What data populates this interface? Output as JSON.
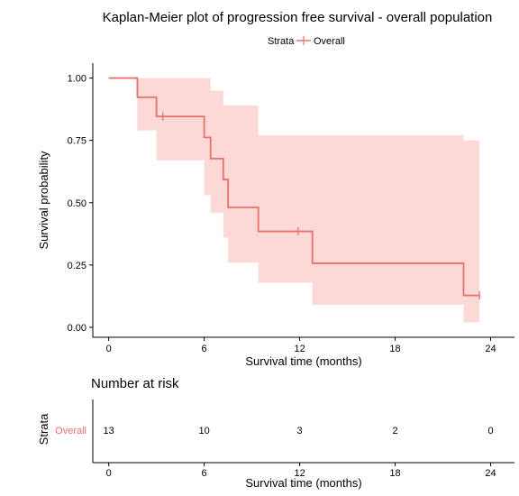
{
  "chart_data": [
    {
      "type": "line",
      "subtype": "kaplan-meier-step",
      "title": "Kaplan-Meier plot of progression free survival - overall population",
      "xlabel": "Survival time (months)",
      "ylabel": "Survival probability",
      "xlim": [
        -1,
        25.5
      ],
      "ylim": [
        -0.04,
        1.06
      ],
      "x_ticks": [
        0,
        6,
        12,
        18,
        24
      ],
      "y_ticks": [
        0.0,
        0.25,
        0.5,
        0.75,
        1.0
      ],
      "y_tick_labels": [
        "0.00",
        "0.25",
        "0.50",
        "0.75",
        "1.00"
      ],
      "legend": {
        "title": "Strata",
        "entries": [
          "Overall"
        ],
        "position": "top"
      },
      "grid": false,
      "series": [
        {
          "name": "Overall",
          "color": "#E8726B",
          "ci_color": "#FCD9D6",
          "x": [
            0,
            1.8,
            1.8,
            3.0,
            3.0,
            6.0,
            6.0,
            6.4,
            6.4,
            7.2,
            7.2,
            7.5,
            7.5,
            9.4,
            9.4,
            12.8,
            12.8,
            22.3,
            22.3,
            23.3
          ],
          "y": [
            1.0,
            1.0,
            0.923,
            0.923,
            0.846,
            0.846,
            0.762,
            0.762,
            0.677,
            0.677,
            0.593,
            0.593,
            0.481,
            0.481,
            0.385,
            0.385,
            0.257,
            0.257,
            0.128,
            0.128
          ],
          "ci_lower": [
            1.0,
            1.0,
            0.79,
            0.79,
            0.67,
            0.67,
            0.53,
            0.53,
            0.46,
            0.46,
            0.36,
            0.36,
            0.26,
            0.26,
            0.18,
            0.18,
            0.09,
            0.09,
            0.02,
            0.02
          ],
          "ci_upper": [
            1.0,
            1.0,
            1.0,
            1.0,
            1.0,
            1.0,
            1.0,
            1.0,
            0.95,
            0.95,
            0.89,
            0.89,
            0.89,
            0.89,
            0.77,
            0.77,
            0.77,
            0.77,
            0.75,
            0.75
          ],
          "censor_x": [
            3.4,
            11.9,
            23.3
          ],
          "censor_y": [
            0.846,
            0.385,
            0.128
          ]
        }
      ]
    },
    {
      "type": "table",
      "title": "Number at risk",
      "xlabel": "Survival time (months)",
      "ylabel": "Strata",
      "x_ticks": [
        0,
        6,
        12,
        18,
        24
      ],
      "rows": [
        {
          "label": "Overall",
          "values": [
            13,
            10,
            3,
            2,
            0
          ]
        }
      ]
    }
  ]
}
